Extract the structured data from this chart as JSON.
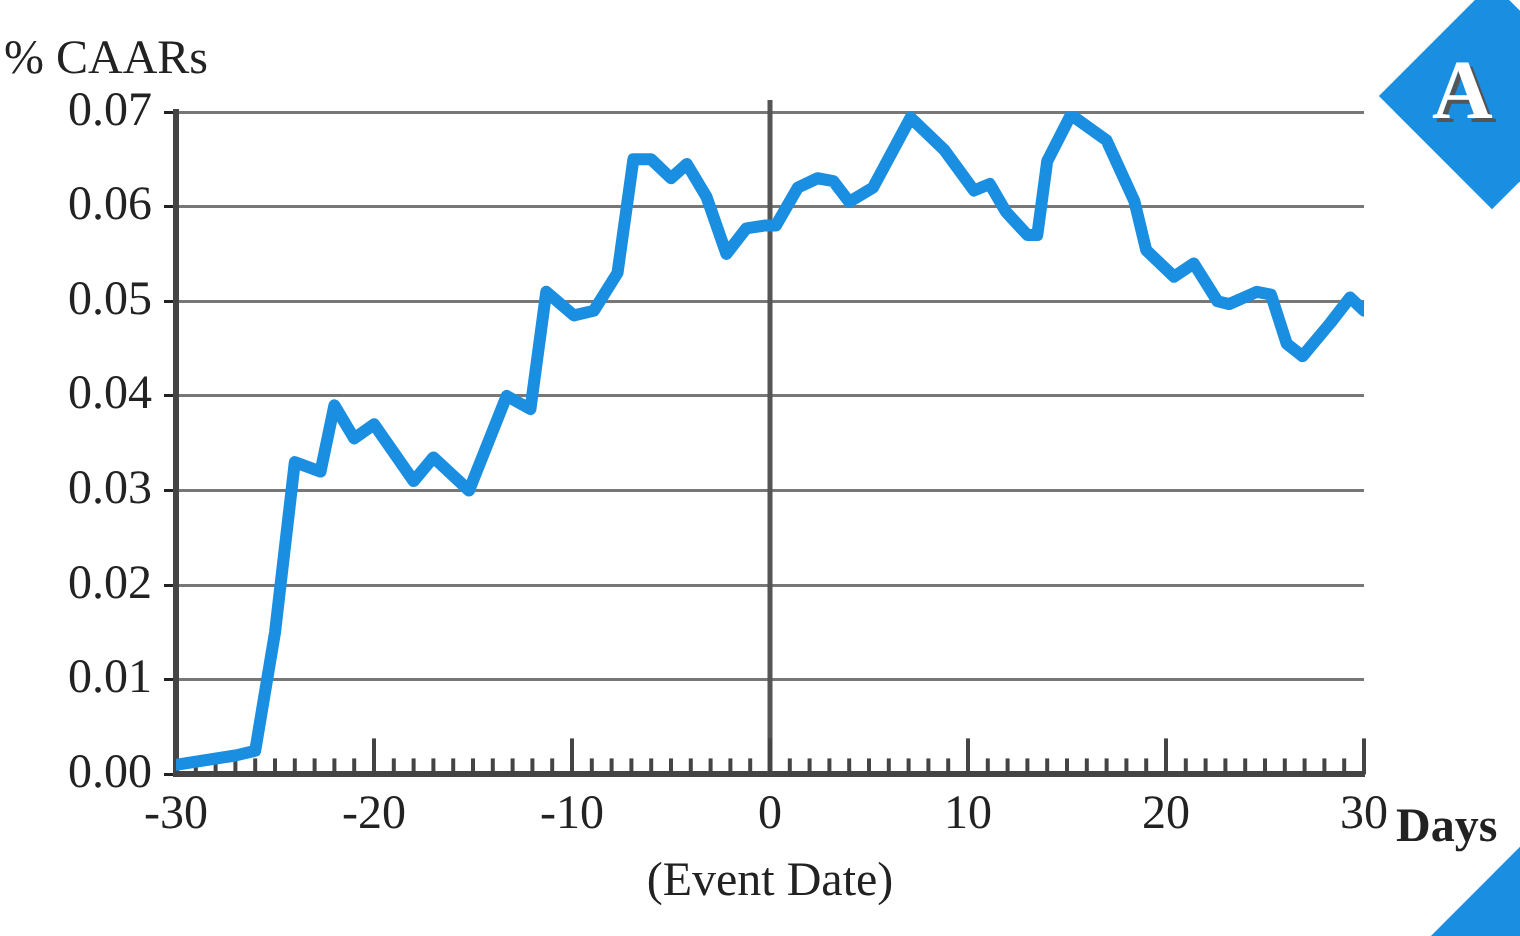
{
  "chart_data": {
    "type": "line",
    "ylabel": "% CAARs",
    "xlabel": "(Event Date)",
    "annotations": [
      "Days",
      "A"
    ],
    "grid": "y",
    "legend": false,
    "marker": "none",
    "line_style": "solid",
    "xlim": [
      -30,
      30
    ],
    "ylim": [
      0,
      0.07
    ],
    "xticks": [
      -30,
      {
        "value": -29,
        "label": null
      },
      {
        "value": -28,
        "label": null
      },
      {
        "value": -27,
        "label": null
      },
      {
        "value": -26,
        "label": null
      },
      {
        "value": -25,
        "label": null
      },
      {
        "value": -24,
        "label": null
      },
      {
        "value": -23,
        "label": null
      },
      {
        "value": -22,
        "label": null
      },
      {
        "value": -21,
        "label": null
      },
      -20,
      {
        "value": -19,
        "label": null
      },
      {
        "value": -18,
        "label": null
      },
      {
        "value": -17,
        "label": null
      },
      {
        "value": -16,
        "label": null
      },
      {
        "value": -15,
        "label": null
      },
      {
        "value": -14,
        "label": null
      },
      {
        "value": -13,
        "label": null
      },
      {
        "value": -12,
        "label": null
      },
      {
        "value": -11,
        "label": null
      },
      -10,
      {
        "value": -9,
        "label": null
      },
      {
        "value": -8,
        "label": null
      },
      {
        "value": -7,
        "label": null
      },
      {
        "value": -6,
        "label": null
      },
      {
        "value": -5,
        "label": null
      },
      {
        "value": -4,
        "label": null
      },
      {
        "value": -3,
        "label": null
      },
      {
        "value": -2,
        "label": null
      },
      {
        "value": -1,
        "label": null
      },
      0,
      {
        "value": 1,
        "label": null
      },
      {
        "value": 2,
        "label": null
      },
      {
        "value": 3,
        "label": null
      },
      {
        "value": 4,
        "label": null
      },
      {
        "value": 5,
        "label": null
      },
      {
        "value": 6,
        "label": null
      },
      {
        "value": 7,
        "label": null
      },
      {
        "value": 8,
        "label": null
      },
      {
        "value": 9,
        "label": null
      },
      10,
      {
        "value": 11,
        "label": null
      },
      {
        "value": 12,
        "label": null
      },
      {
        "value": 13,
        "label": null
      },
      {
        "value": 14,
        "label": null
      },
      {
        "value": 15,
        "label": null
      },
      {
        "value": 16,
        "label": null
      },
      {
        "value": 17,
        "label": null
      },
      {
        "value": 18,
        "label": null
      },
      {
        "value": 19,
        "label": null
      },
      20,
      {
        "value": 21,
        "label": null
      },
      {
        "value": 22,
        "label": null
      },
      {
        "value": 23,
        "label": null
      },
      {
        "value": 24,
        "label": null
      },
      {
        "value": 25,
        "label": null
      },
      {
        "value": 26,
        "label": null
      },
      {
        "value": 27,
        "label": null
      },
      {
        "value": 28,
        "label": null
      },
      {
        "value": 29,
        "label": null
      },
      30
    ],
    "yticks": [
      {
        "value": 0,
        "label": "0.00"
      },
      {
        "value": 0.01,
        "label": "0.01"
      },
      {
        "value": 0.02,
        "label": "0.02"
      },
      {
        "value": 0.03,
        "label": "0.03"
      },
      {
        "value": 0.04,
        "label": "0.04"
      },
      {
        "value": 0.05,
        "label": "0.05"
      },
      {
        "value": 0.06,
        "label": "0.06"
      },
      {
        "value": 0.07,
        "label": "0.07"
      }
    ],
    "ref_lines": [
      {
        "axis": "x",
        "value": 0,
        "color": "#555555"
      }
    ],
    "series": [
      {
        "color": "#1a8ee0",
        "x": [
          -30,
          -27,
          -26,
          -25,
          -24,
          -22.7,
          -22,
          -21,
          -20,
          -18,
          -17,
          -15.2,
          -13.3,
          -12.1,
          -11.3,
          -9.9,
          -8.9,
          -7.7,
          -6.9,
          -6,
          -5,
          -4.2,
          -3.2,
          -2.2,
          -1.2,
          -0.3,
          0.3,
          1.4,
          2.4,
          3.2,
          4,
          5.2,
          7.1,
          8.8,
          10.3,
          11.1,
          11.9,
          13,
          13.5,
          14,
          15.2,
          17,
          18.4,
          19,
          20.4,
          21.4,
          22.6,
          23.2,
          24.6,
          25.3,
          26.1,
          26.9,
          28.3,
          29.3,
          30
        ],
        "values": [
          0.001,
          0.002,
          0.0025,
          0.015,
          0.033,
          0.032,
          0.039,
          0.0355,
          0.037,
          0.031,
          0.0335,
          0.03,
          0.04,
          0.0386,
          0.051,
          0.0485,
          0.049,
          0.053,
          0.065,
          0.065,
          0.063,
          0.0645,
          0.061,
          0.055,
          0.0577,
          0.058,
          0.058,
          0.062,
          0.063,
          0.0627,
          0.0605,
          0.062,
          0.0694,
          0.066,
          0.0617,
          0.0624,
          0.0595,
          0.057,
          0.057,
          0.0648,
          0.0697,
          0.067,
          0.0606,
          0.0554,
          0.0526,
          0.054,
          0.05,
          0.0497,
          0.051,
          0.0507,
          0.0455,
          0.0442,
          0.0477,
          0.0504,
          0.049
        ]
      }
    ]
  }
}
